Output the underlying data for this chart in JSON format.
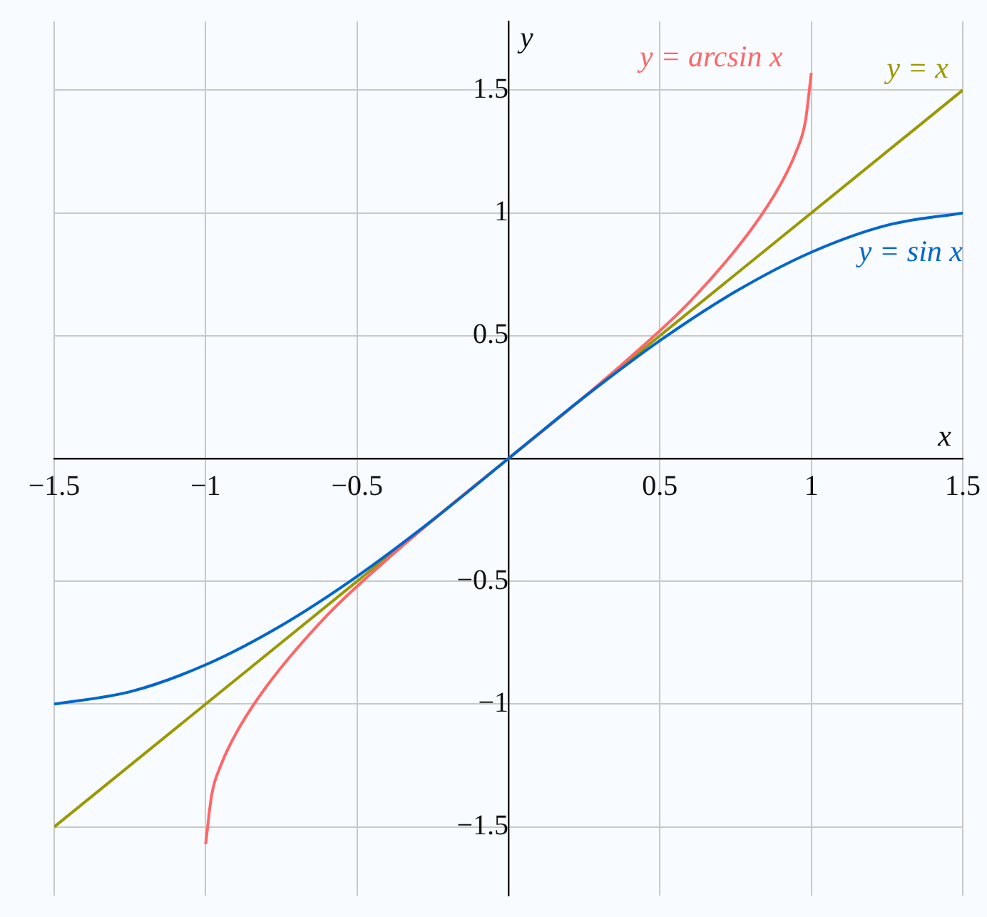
{
  "chart_data": {
    "type": "line",
    "xlabel": "x",
    "ylabel": "y",
    "xlim": [
      -1.5,
      1.5
    ],
    "ylim": [
      -1.78,
      1.78
    ],
    "xticks": [
      -1.5,
      -1,
      -0.5,
      {
        "value": 0,
        "label": null
      },
      0.5,
      1,
      1.5
    ],
    "yticks": [
      -1.5,
      -1,
      -0.5,
      {
        "value": 0,
        "label": null
      },
      0.5,
      1,
      1.5
    ],
    "grid": true,
    "marker": "none",
    "line_style": "solid",
    "series": [
      {
        "name": "y = sin x",
        "color": "#0066cc",
        "x": [
          -1.5,
          -1.25,
          -1,
          -0.75,
          -0.5,
          -0.25,
          0,
          0.25,
          0.5,
          0.75,
          1,
          1.25,
          1.5
        ],
        "values": [
          -1.0,
          -0.95,
          -0.84,
          -0.68,
          -0.48,
          -0.25,
          0,
          0.25,
          0.48,
          0.68,
          0.84,
          0.95,
          1.0
        ]
      },
      {
        "name": "y = arcsin x",
        "color": "#ff6666",
        "x": [
          -1,
          -0.98,
          -0.95,
          -0.9,
          -0.8,
          -0.6,
          -0.4,
          -0.2,
          0,
          0.2,
          0.4,
          0.6,
          0.8,
          0.9,
          0.95,
          0.98,
          1
        ],
        "values": [
          -1.57,
          -1.37,
          -1.25,
          -1.12,
          -0.93,
          -0.64,
          -0.41,
          -0.2,
          0,
          0.2,
          0.41,
          0.64,
          0.93,
          1.12,
          1.25,
          1.37,
          1.57
        ]
      },
      {
        "name": "y = x",
        "color": "#999900",
        "x": [
          -1.5,
          1.5
        ],
        "values": [
          -1.5,
          1.5
        ]
      }
    ]
  }
}
